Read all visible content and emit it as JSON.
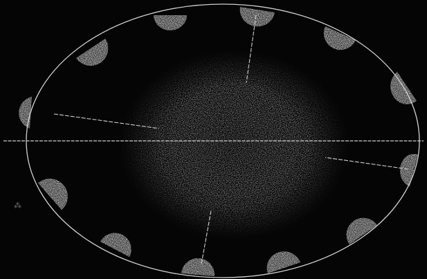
{
  "diagram": {
    "palette": {
      "background": "#050505",
      "ink": "#d6d6d6",
      "body_glow": "#e8e8e8",
      "phase_light": "#cfcfcf"
    },
    "elements": {
      "orbit": "ellipse-orbit",
      "central_body": "diffuse-central-glow",
      "axis": "horizontal-axis-line",
      "phases": "moon-phase-discs",
      "rays": "radius-lines"
    }
  }
}
